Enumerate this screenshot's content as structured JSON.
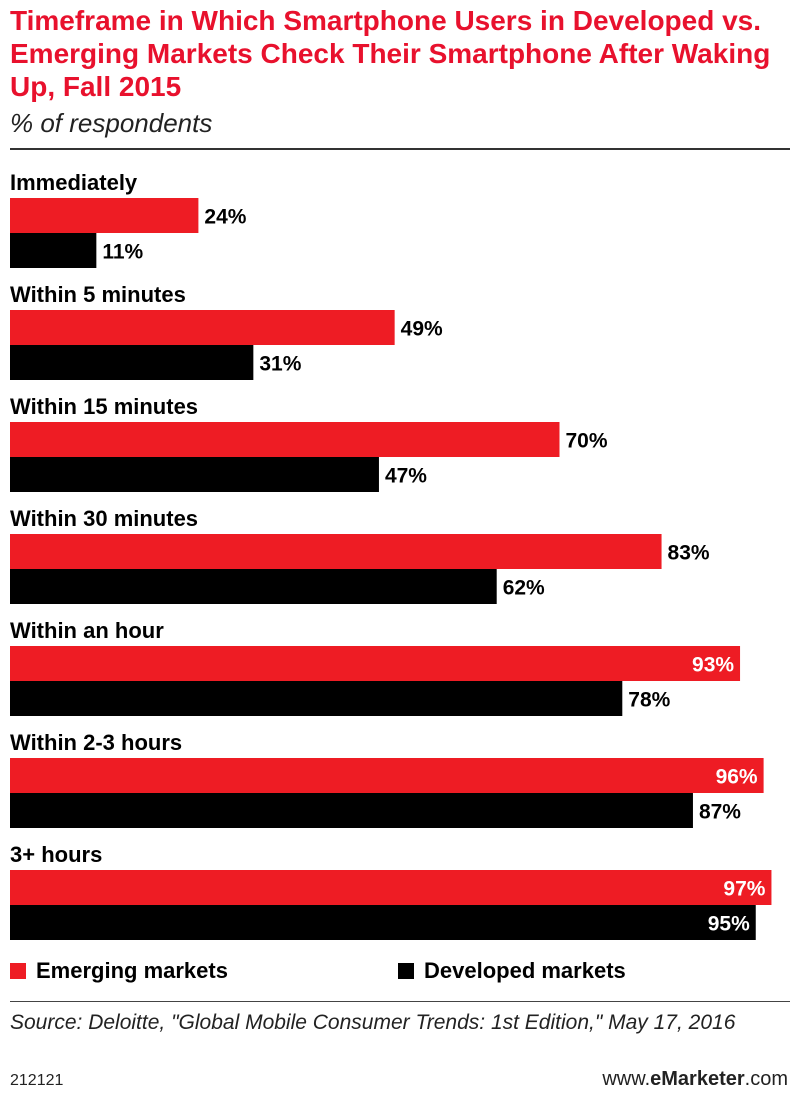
{
  "header": {
    "title": "Timeframe in Which Smartphone Users in Developed vs. Emerging Markets Check Their Smartphone After Waking Up, Fall 2015",
    "subtitle": "% of respondents"
  },
  "colors": {
    "emerging": "#ee1c24",
    "developed": "#000000"
  },
  "chart_data": {
    "type": "bar",
    "orientation": "horizontal",
    "categories": [
      "Immediately",
      "Within 5 minutes",
      "Within 15 minutes",
      "Within 30 minutes",
      "Within an hour",
      "Within 2-3 hours",
      "3+ hours"
    ],
    "series": [
      {
        "name": "Emerging markets",
        "values": [
          24,
          49,
          70,
          83,
          93,
          96,
          97
        ]
      },
      {
        "name": "Developed markets",
        "values": [
          11,
          31,
          47,
          62,
          78,
          87,
          95
        ]
      }
    ],
    "value_labels": [
      [
        "24%",
        "49%",
        "70%",
        "83%",
        "93%",
        "96%",
        "97%"
      ],
      [
        "11%",
        "31%",
        "47%",
        "62%",
        "78%",
        "87%",
        "95%"
      ]
    ],
    "xlim": [
      0,
      100
    ],
    "legend": "bottom",
    "grid": false
  },
  "legend": {
    "emerging_label": "Emerging markets",
    "developed_label": "Developed markets"
  },
  "footer": {
    "source": "Source: Deloitte, \"Global Mobile Consumer Trends: 1st Edition,\" May 17, 2016",
    "chart_id": "212121",
    "brand_prefix": "www.",
    "brand_name": "eMarketer",
    "brand_suffix": ".com"
  }
}
